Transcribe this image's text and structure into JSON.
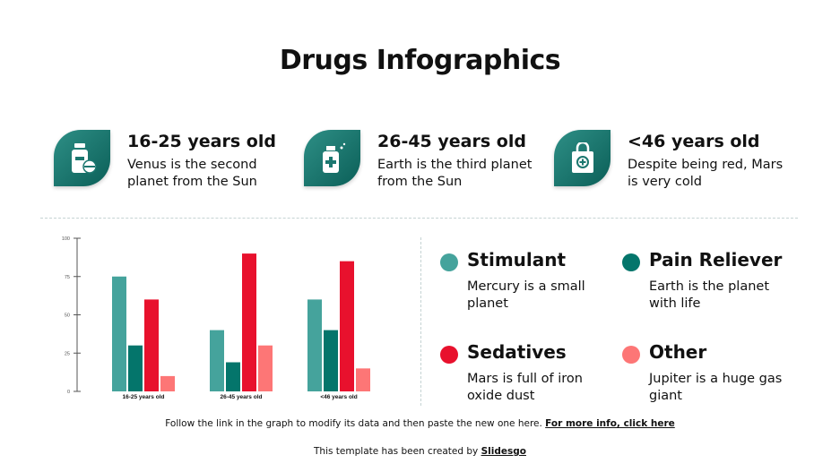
{
  "title": "Drugs Infographics",
  "cards": [
    {
      "heading": "16-25 years old",
      "text": "Venus is the second planet from the Sun",
      "icon": "pill-bottle-icon"
    },
    {
      "heading": "26-45 years old",
      "text": "Earth is the third planet from the Sun",
      "icon": "medicine-bottle-icon"
    },
    {
      "heading": "<46 years old",
      "text": "Despite being red, Mars is very cold",
      "icon": "pharmacy-bag-icon"
    }
  ],
  "legend": [
    {
      "label": "Stimulant",
      "text": "Mercury is a small planet",
      "color": "#45a39c"
    },
    {
      "label": "Pain Reliever",
      "text": "Earth is the planet with life",
      "color": "#04756b"
    },
    {
      "label": "Sedatives",
      "text": "Mars is full of iron oxide dust",
      "color": "#e8112d"
    },
    {
      "label": "Other",
      "text": "Jupiter is a huge gas giant",
      "color": "#fd7676"
    }
  ],
  "footer": {
    "note": "Follow the link in the graph to modify its data and then paste the new one here. ",
    "note_link": "For more info, click here",
    "credit": "This template has been created by ",
    "credit_link": "Slidesgo"
  },
  "chart_data": {
    "type": "bar",
    "categories": [
      "16-25 years old",
      "26-45 years old",
      "<46 years old"
    ],
    "series": [
      {
        "name": "Stimulant",
        "values": [
          75,
          40,
          60
        ],
        "color": "#45a39c"
      },
      {
        "name": "Pain Reliever",
        "values": [
          30,
          19,
          40
        ],
        "color": "#04756b"
      },
      {
        "name": "Sedatives",
        "values": [
          60,
          90,
          85
        ],
        "color": "#e8112d"
      },
      {
        "name": "Other",
        "values": [
          10,
          30,
          15
        ],
        "color": "#fd7676"
      }
    ],
    "yticks": [
      "0",
      "25",
      "50",
      "75",
      "100"
    ],
    "ylim": [
      0,
      100
    ],
    "grid": false,
    "legend": "right"
  }
}
